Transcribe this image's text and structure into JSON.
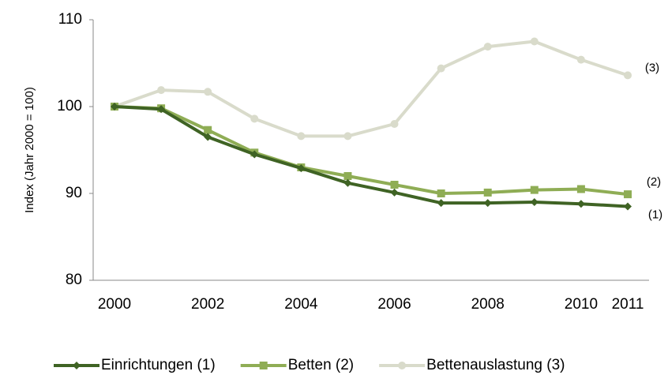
{
  "chart_data": {
    "type": "line",
    "ylabel": "Index (Jahr 2000 = 100)",
    "x": [
      2000,
      2001,
      2002,
      2003,
      2004,
      2005,
      2006,
      2007,
      2008,
      2009,
      2010,
      2011
    ],
    "xlim": [
      2000,
      2011
    ],
    "xticks": [
      2000,
      2002,
      2004,
      2006,
      2008,
      2010,
      2011
    ],
    "ylim": [
      80,
      110
    ],
    "yticks": [
      80,
      90,
      100,
      110
    ],
    "grid": false,
    "legend": "bottom",
    "series": [
      {
        "name": "Einrichtungen (1)",
        "color": "#3f6324",
        "marker": "diamond",
        "values": [
          100,
          99.7,
          96.5,
          94.5,
          92.9,
          91.2,
          90.1,
          88.9,
          88.9,
          89.0,
          88.8,
          88.5
        ]
      },
      {
        "name": "Betten (2)",
        "color": "#8fad55",
        "marker": "square",
        "values": [
          100,
          99.8,
          97.3,
          94.7,
          93.0,
          92.0,
          91.0,
          90.0,
          90.1,
          90.4,
          90.5,
          89.9
        ]
      },
      {
        "name": "Bettenauslastung (3)",
        "color": "#d9dbcb",
        "marker": "circle",
        "values": [
          100,
          101.9,
          101.7,
          98.6,
          96.6,
          96.6,
          98.0,
          104.4,
          106.9,
          107.5,
          105.4,
          103.6
        ]
      }
    ],
    "annotations": [
      "(1)",
      "(2)",
      "(3)"
    ]
  }
}
